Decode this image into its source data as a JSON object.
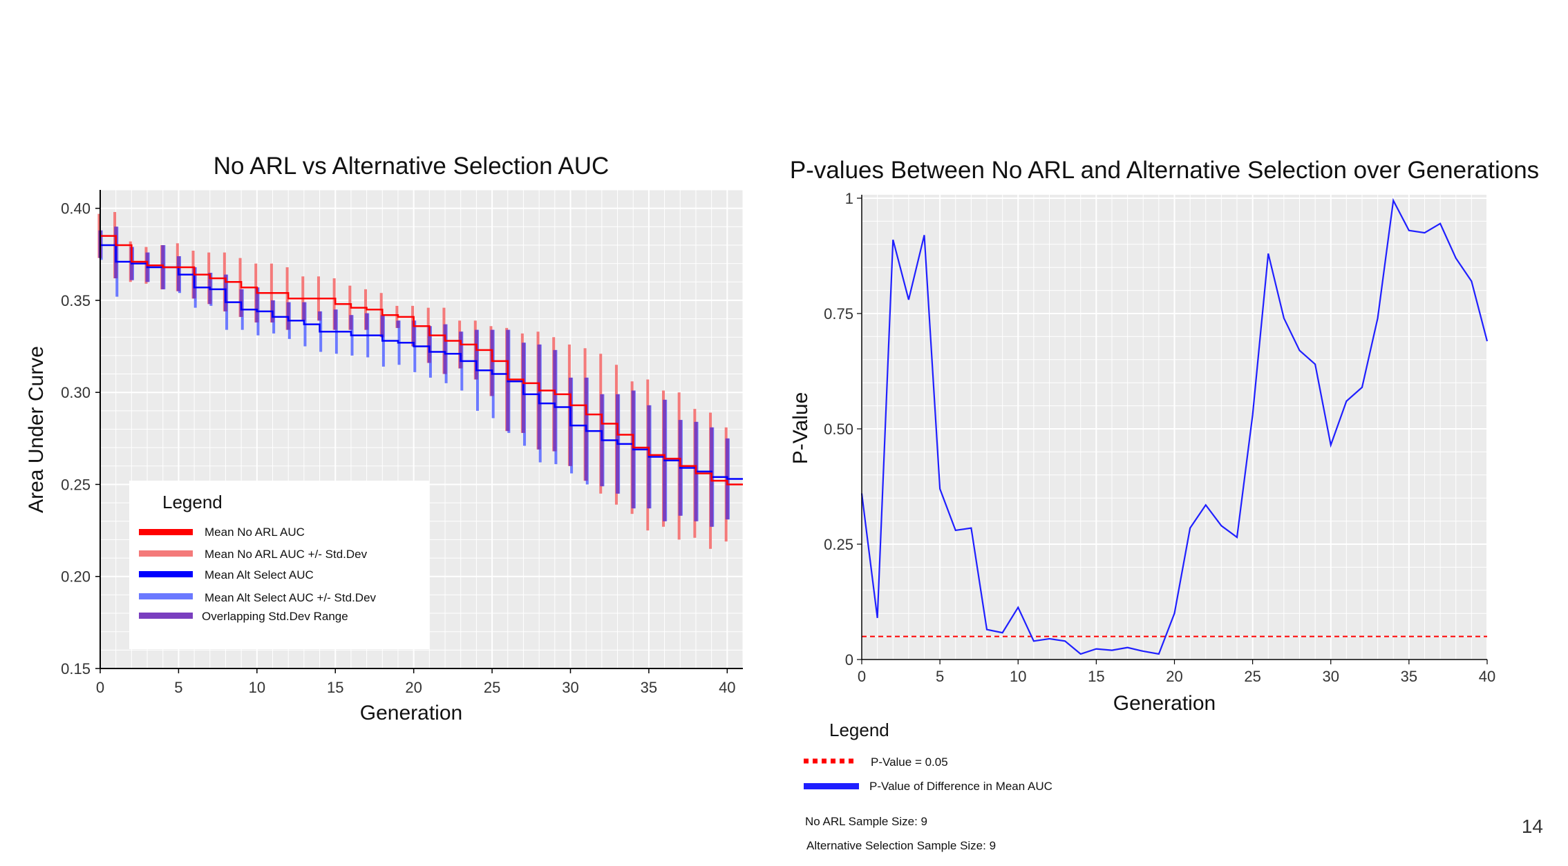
{
  "page_number": "14",
  "colors": {
    "mean_noarl": "#ff0000",
    "std_noarl": "#f47a7a",
    "mean_alt": "#0000ff",
    "std_alt": "#6b79ff",
    "overlap": "#7a3fbf",
    "pvalue_line": "#1f1fff",
    "threshold": "#ff0000",
    "plot_bg": "#ebebeb"
  },
  "chart_data": [
    {
      "type": "line",
      "title": "No ARL vs Alternative Selection AUC",
      "xlabel": "Generation",
      "ylabel": "Area Under Curve",
      "xlim": [
        0,
        41
      ],
      "ylim": [
        0.15,
        0.41
      ],
      "xticks": [
        0,
        5,
        10,
        15,
        20,
        25,
        30,
        35,
        40
      ],
      "yticks": [
        0.15,
        0.2,
        0.25,
        0.3,
        0.35,
        0.4
      ],
      "ytick_labels": [
        "0.15",
        "0.20",
        "0.25",
        "0.30",
        "0.35",
        "0.40"
      ],
      "grid": true,
      "legend_position": "bottom-left",
      "x": [
        0,
        1,
        2,
        3,
        4,
        5,
        6,
        7,
        8,
        9,
        10,
        11,
        12,
        13,
        14,
        15,
        16,
        17,
        18,
        19,
        20,
        21,
        22,
        23,
        24,
        25,
        26,
        27,
        28,
        29,
        30,
        31,
        32,
        33,
        34,
        35,
        36,
        37,
        38,
        39,
        40
      ],
      "series": [
        {
          "name": "Mean No ARL AUC",
          "values": [
            0.385,
            0.38,
            0.371,
            0.369,
            0.368,
            0.368,
            0.364,
            0.362,
            0.36,
            0.357,
            0.354,
            0.354,
            0.351,
            0.351,
            0.351,
            0.348,
            0.346,
            0.345,
            0.342,
            0.341,
            0.336,
            0.331,
            0.328,
            0.326,
            0.323,
            0.317,
            0.307,
            0.305,
            0.301,
            0.299,
            0.293,
            0.288,
            0.283,
            0.277,
            0.27,
            0.266,
            0.264,
            0.26,
            0.256,
            0.252,
            0.25
          ],
          "std": [
            0.012,
            0.018,
            0.011,
            0.01,
            0.012,
            0.013,
            0.013,
            0.014,
            0.016,
            0.016,
            0.016,
            0.016,
            0.017,
            0.012,
            0.012,
            0.014,
            0.012,
            0.011,
            0.012,
            0.006,
            0.011,
            0.015,
            0.018,
            0.013,
            0.016,
            0.019,
            0.028,
            0.027,
            0.032,
            0.031,
            0.033,
            0.036,
            0.038,
            0.038,
            0.036,
            0.041,
            0.037,
            0.04,
            0.035,
            0.037,
            0.031
          ]
        },
        {
          "name": "Mean Alt Select AUC",
          "values": [
            0.38,
            0.371,
            0.37,
            0.368,
            0.368,
            0.364,
            0.357,
            0.356,
            0.349,
            0.345,
            0.344,
            0.341,
            0.339,
            0.337,
            0.333,
            0.333,
            0.331,
            0.331,
            0.328,
            0.327,
            0.325,
            0.322,
            0.321,
            0.317,
            0.312,
            0.31,
            0.306,
            0.299,
            0.294,
            0.292,
            0.282,
            0.279,
            0.274,
            0.272,
            0.269,
            0.265,
            0.263,
            0.259,
            0.257,
            0.254,
            0.253
          ],
          "std": [
            0.008,
            0.019,
            0.009,
            0.008,
            0.012,
            0.01,
            0.011,
            0.009,
            0.015,
            0.011,
            0.013,
            0.009,
            0.01,
            0.012,
            0.011,
            0.012,
            0.011,
            0.012,
            0.014,
            0.012,
            0.014,
            0.014,
            0.016,
            0.016,
            0.022,
            0.024,
            0.028,
            0.028,
            0.032,
            0.031,
            0.026,
            0.029,
            0.025,
            0.027,
            0.032,
            0.028,
            0.033,
            0.026,
            0.027,
            0.027,
            0.022
          ]
        }
      ],
      "legend": {
        "title": "Legend",
        "entries": [
          "Mean No ARL AUC",
          "Mean No ARL AUC +/- Std.Dev",
          "Mean Alt Select AUC",
          "Mean Alt Select AUC +/- Std.Dev",
          "Overlapping Std.Dev Range"
        ]
      }
    },
    {
      "type": "line",
      "title": "P-values Between No ARL and Alternative Selection over Generations",
      "xlabel": "Generation",
      "ylabel": "P-Value",
      "xlim": [
        0,
        40
      ],
      "ylim": [
        0,
        1
      ],
      "xticks": [
        0,
        5,
        10,
        15,
        20,
        25,
        30,
        35,
        40
      ],
      "yticks": [
        0,
        0.25,
        0.5,
        0.75,
        1
      ],
      "ytick_labels": [
        "0",
        "0.25",
        "0.50",
        "0.75",
        "1"
      ],
      "grid": true,
      "legend_position": "below",
      "x": [
        0,
        1,
        2,
        3,
        4,
        5,
        6,
        7,
        8,
        9,
        10,
        11,
        12,
        13,
        14,
        15,
        16,
        17,
        18,
        19,
        20,
        21,
        22,
        23,
        24,
        25,
        26,
        27,
        28,
        29,
        30,
        31,
        32,
        33,
        34,
        35,
        36,
        37,
        38,
        39,
        40
      ],
      "series": [
        {
          "name": "P-Value of Difference in Mean AUC",
          "values": [
            0.36,
            0.09,
            0.91,
            0.78,
            0.92,
            0.37,
            0.28,
            0.285,
            0.065,
            0.058,
            0.113,
            0.04,
            0.045,
            0.04,
            0.012,
            0.023,
            0.02,
            0.026,
            0.018,
            0.012,
            0.1,
            0.285,
            0.335,
            0.29,
            0.265,
            0.53,
            0.88,
            0.74,
            0.67,
            0.64,
            0.465,
            0.56,
            0.59,
            0.74,
            0.995,
            0.93,
            0.925,
            0.945,
            0.87,
            0.82,
            0.69
          ]
        }
      ],
      "threshold": {
        "name": "P-Value = 0.05",
        "value": 0.05
      },
      "legend": {
        "title": "Legend",
        "entries": [
          "P-Value = 0.05",
          "P-Value of Difference in Mean AUC"
        ]
      },
      "notes": [
        "No ARL Sample Size: 9",
        "Alternative Selection Sample Size: 9"
      ]
    }
  ]
}
